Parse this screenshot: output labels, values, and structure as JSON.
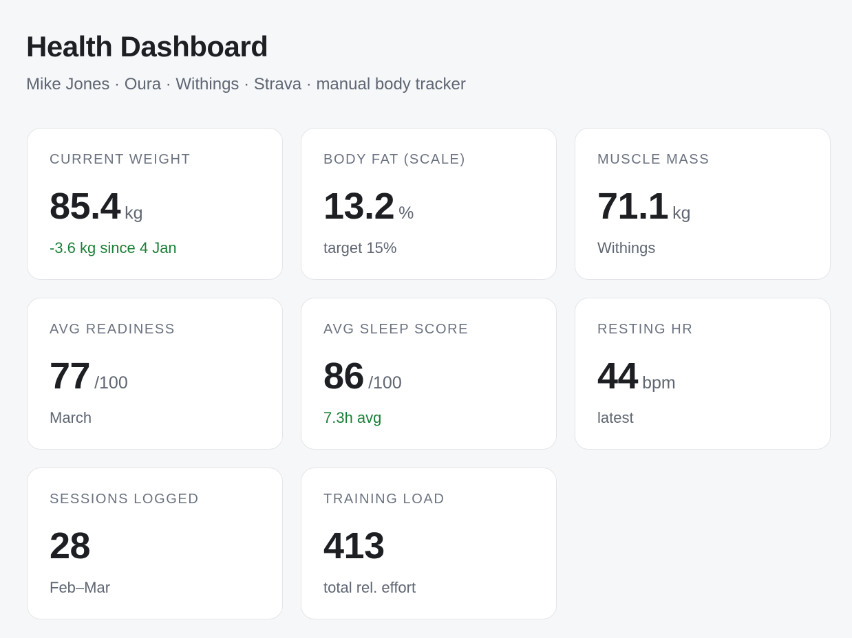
{
  "header": {
    "title": "Health Dashboard",
    "subtitle": "Mike Jones · Oura · Withings · Strava · manual body tracker"
  },
  "cards": [
    {
      "label": "CURRENT WEIGHT",
      "value": 85.4,
      "unit": "kg",
      "note": "-3.6 kg since 4 Jan",
      "note_color": "#1a7f37"
    },
    {
      "label": "BODY FAT (SCALE)",
      "value": 13.2,
      "unit": "%",
      "note": "target 15%",
      "note_color": "#5f6672"
    },
    {
      "label": "MUSCLE MASS",
      "value": 71.1,
      "unit": "kg",
      "note": "Withings",
      "note_color": "#5f6672"
    },
    {
      "label": "AVG READINESS",
      "value": 77,
      "unit": "/100",
      "note": "March",
      "note_color": "#5f6672"
    },
    {
      "label": "AVG SLEEP SCORE",
      "value": 86,
      "unit": "/100",
      "note": "7.3h avg",
      "note_color": "#1a7f37"
    },
    {
      "label": "RESTING HR",
      "value": 44,
      "unit": "bpm",
      "note": "latest",
      "note_color": "#5f6672"
    },
    {
      "label": "SESSIONS LOGGED",
      "value": 28,
      "note": "Feb–Mar",
      "note_color": "#5f6672"
    },
    {
      "label": "TRAINING LOAD",
      "value": 413,
      "note": "total rel. effort",
      "note_color": "#5f6672"
    }
  ]
}
